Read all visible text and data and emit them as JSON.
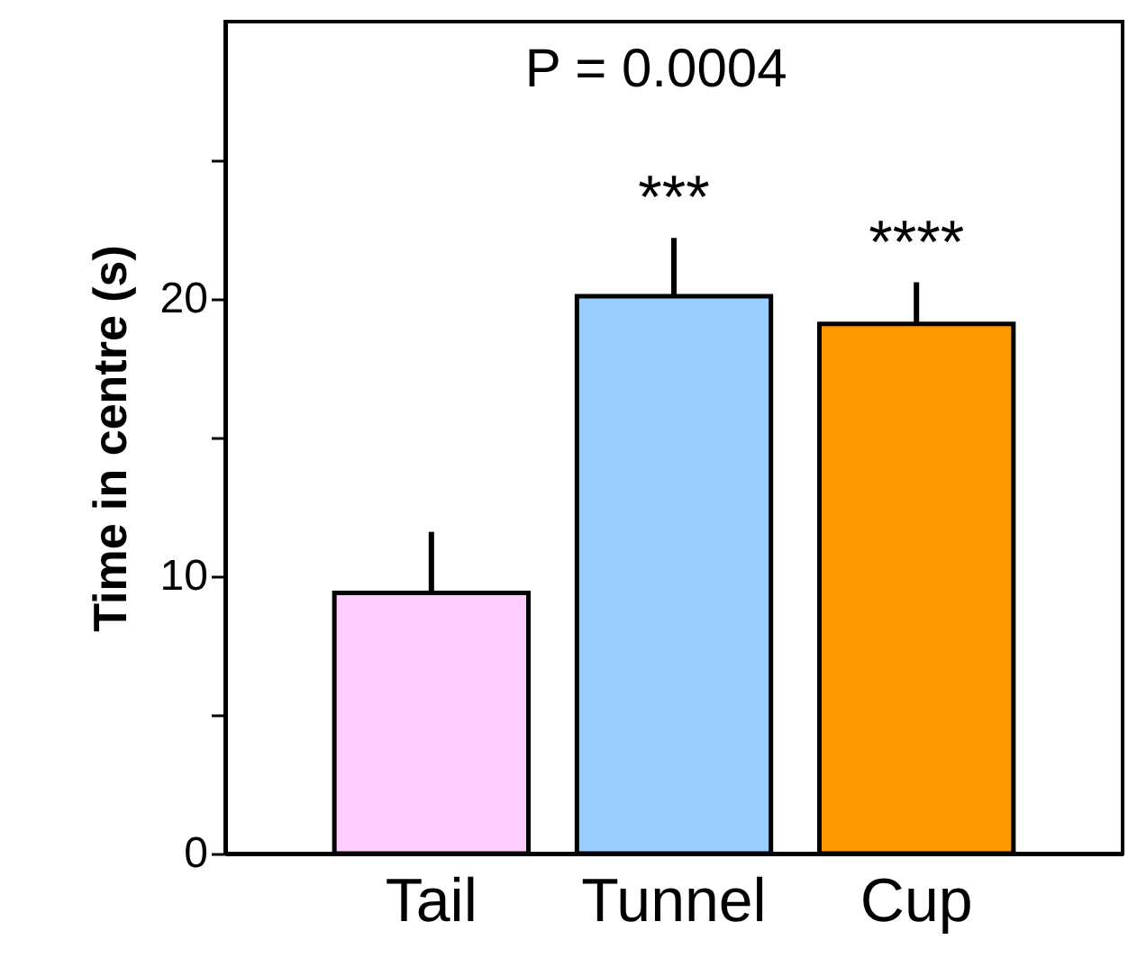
{
  "chart_data": {
    "type": "bar",
    "ylabel": "Time in centre (s)",
    "categories": [
      "Tail",
      "Tunnel",
      "Cup"
    ],
    "values": [
      9.4,
      20.1,
      19.1
    ],
    "colors": [
      "#ffccff",
      "#99ccff",
      "#ff9900"
    ],
    "errors": [
      [
        9.4,
        11.6
      ],
      [
        20.1,
        22.2
      ],
      [
        19.1,
        20.6
      ]
    ],
    "ylim": [
      0,
      30
    ],
    "yticks": [
      0,
      {
        "value": 5,
        "label": null
      },
      10,
      {
        "value": 15,
        "label": null
      },
      20,
      {
        "value": 25,
        "label": null
      }
    ],
    "grid": false,
    "annotations": [
      "P = 0.0004",
      "***",
      "****"
    ]
  }
}
